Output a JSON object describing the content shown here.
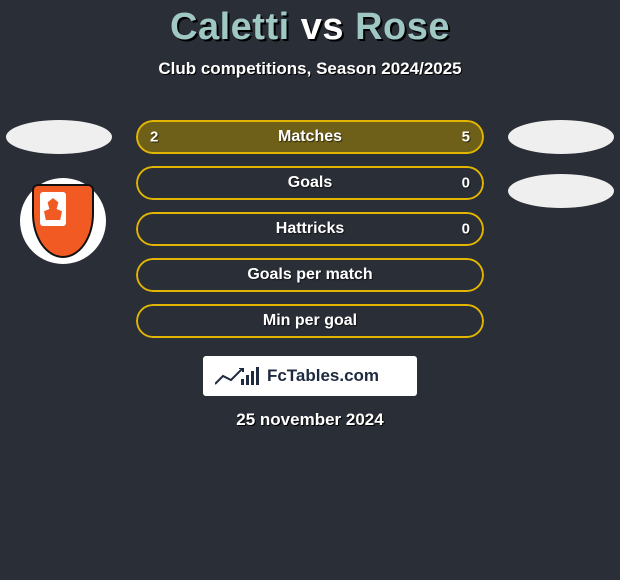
{
  "title": {
    "p1": "Caletti",
    "vs": "vs",
    "p2": "Rose"
  },
  "subtitle": "Club competitions, Season 2024/2025",
  "colors": {
    "accent": "#e2b500",
    "leftFill": "#6e6018",
    "rightFill": "#6e6018",
    "background": "#2a2e36"
  },
  "bars": [
    {
      "label": "Matches",
      "left": "2",
      "right": "5",
      "leftPct": 28,
      "rightPct": 72,
      "leftFilled": true,
      "rightFilled": true
    },
    {
      "label": "Goals",
      "left": "",
      "right": "0",
      "leftPct": 0,
      "rightPct": 0,
      "leftFilled": false,
      "rightFilled": false
    },
    {
      "label": "Hattricks",
      "left": "",
      "right": "0",
      "leftPct": 0,
      "rightPct": 0,
      "leftFilled": false,
      "rightFilled": false
    },
    {
      "label": "Goals per match",
      "left": "",
      "right": "",
      "leftPct": 0,
      "rightPct": 0,
      "leftFilled": false,
      "rightFilled": false
    },
    {
      "label": "Min per goal",
      "left": "",
      "right": "",
      "leftPct": 0,
      "rightPct": 0,
      "leftFilled": false,
      "rightFilled": false
    }
  ],
  "badge": {
    "text": "FcTables.com"
  },
  "date": "25 november 2024",
  "club": {
    "name": "brisbane-roar"
  }
}
